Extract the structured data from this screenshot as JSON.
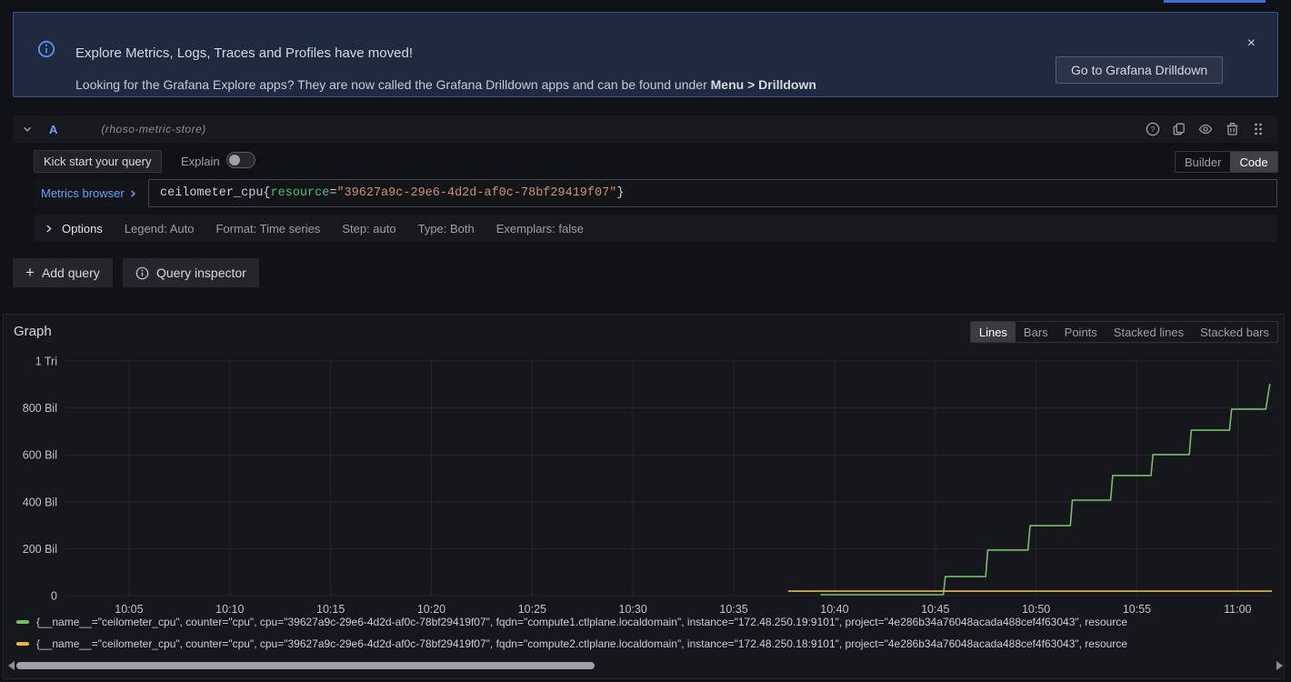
{
  "accent_colors": {
    "blue": "#6e9fff",
    "loading_bar": "#3d71d9",
    "green": "#73bf69",
    "yellow": "#eab839"
  },
  "banner": {
    "info_icon": "info-circle",
    "title": "Explore Metrics, Logs, Traces and Profiles have moved!",
    "message": "Looking for the Grafana Explore apps? They are now called the Grafana Drilldown apps and can be found under ",
    "message_bold": "Menu > Drilldown",
    "button_label": "Go to Grafana Drilldown",
    "close_icon": "×"
  },
  "query_editor": {
    "header": {
      "ref_id": "A",
      "datasource": "(rhoso-metric-store)",
      "icons": [
        "help-circle",
        "copy",
        "eye",
        "trash",
        "drag-handle"
      ]
    },
    "kick_start_label": "Kick start your query",
    "explain_label": "Explain",
    "explain_toggle_state": "off",
    "mode": {
      "builder": "Builder",
      "code": "Code",
      "active": "Code"
    },
    "metrics_browser_label": "Metrics browser",
    "query": {
      "metric": "ceilometer_cpu{",
      "label": "resource",
      "operator": "=",
      "value": "\"39627a9c-29e6-4d2d-af0c-78bf29419f07\"",
      "close": "}"
    },
    "options": {
      "label": "Options",
      "items": [
        "Legend: Auto",
        "Format: Time series",
        "Step: auto",
        "Type: Both",
        "Exemplars: false"
      ]
    },
    "add_query_label": "Add query",
    "add_query_icon": "+",
    "query_inspector_label": "Query inspector"
  },
  "graph": {
    "title": "Graph",
    "style_tabs": [
      "Lines",
      "Bars",
      "Points",
      "Stacked lines",
      "Stacked bars"
    ],
    "active_tab": "Lines",
    "legend": [
      {
        "color": "#73bf69",
        "text": "{__name__=\"ceilometer_cpu\", counter=\"cpu\", cpu=\"39627a9c-29e6-4d2d-af0c-78bf29419f07\", fqdn=\"compute1.ctlplane.localdomain\", instance=\"172.48.250.19:9101\", project=\"4e286b34a76048acada488cef4f63043\", resource"
      },
      {
        "color": "#eab839",
        "text": "{__name__=\"ceilometer_cpu\", counter=\"cpu\", cpu=\"39627a9c-29e6-4d2d-af0c-78bf29419f07\", fqdn=\"compute2.ctlplane.localdomain\", instance=\"172.48.250.18:9101\", project=\"4e286b34a76048acada488cef4f63043\", resource"
      }
    ]
  },
  "chart_data": {
    "type": "line",
    "title": "Graph",
    "grid": true,
    "legend_position": "bottom",
    "x_axis": {
      "unit": "time (HH:MM)",
      "range_minutes_after_10": [
        1.8,
        61.7
      ],
      "ticks": [
        {
          "t": 5,
          "label": "10:05"
        },
        {
          "t": 10,
          "label": "10:10"
        },
        {
          "t": 15,
          "label": "10:15"
        },
        {
          "t": 20,
          "label": "10:20"
        },
        {
          "t": 25,
          "label": "10:25"
        },
        {
          "t": 30,
          "label": "10:30"
        },
        {
          "t": 35,
          "label": "10:35"
        },
        {
          "t": 40,
          "label": "10:40"
        },
        {
          "t": 45,
          "label": "10:45"
        },
        {
          "t": 50,
          "label": "10:50"
        },
        {
          "t": 55,
          "label": "10:55"
        },
        {
          "t": 60,
          "label": "11:00"
        }
      ]
    },
    "y_axis": {
      "unit": "short (Bil = 1e9, Tri = 1e12)",
      "range": [
        0,
        1000
      ],
      "ticks": [
        {
          "v": 0,
          "label": "0"
        },
        {
          "v": 200,
          "label": "200 Bil"
        },
        {
          "v": 400,
          "label": "400 Bil"
        },
        {
          "v": 600,
          "label": "600 Bil"
        },
        {
          "v": 800,
          "label": "800 Bil"
        },
        {
          "v": 1000,
          "label": "1 Tri"
        }
      ]
    },
    "series": [
      {
        "name": "ceilometer_cpu compute1.ctlplane.localdomain (172.48.250.19:9101)",
        "color": "#73bf69",
        "points": [
          [
            39.3,
            4
          ],
          [
            45.4,
            4
          ],
          [
            45.5,
            81
          ],
          [
            47.5,
            81
          ],
          [
            47.6,
            194
          ],
          [
            49.6,
            194
          ],
          [
            49.7,
            298
          ],
          [
            51.7,
            298
          ],
          [
            51.8,
            407
          ],
          [
            53.7,
            407
          ],
          [
            53.8,
            512
          ],
          [
            55.7,
            512
          ],
          [
            55.8,
            601
          ],
          [
            57.6,
            601
          ],
          [
            57.7,
            705
          ],
          [
            59.6,
            705
          ],
          [
            59.7,
            795
          ],
          [
            61.4,
            795
          ],
          [
            61.6,
            903
          ]
        ]
      },
      {
        "name": "ceilometer_cpu compute2.ctlplane.localdomain (172.48.250.18:9101)",
        "color": "#eab839",
        "points": [
          [
            37.7,
            19
          ],
          [
            61.7,
            19
          ]
        ]
      }
    ]
  }
}
